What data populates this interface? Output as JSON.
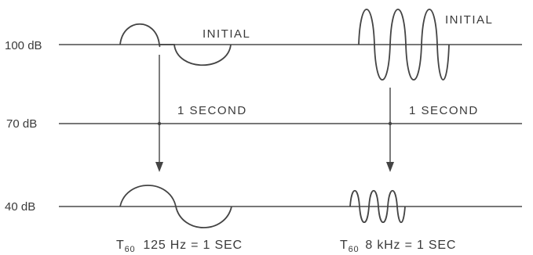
{
  "levels": [
    {
      "label": "100 dB"
    },
    {
      "label": "70 dB"
    },
    {
      "label": "40 dB"
    }
  ],
  "left_panel": {
    "initial_label": "INITIAL",
    "time_label": "1 SECOND",
    "caption_main": "T",
    "caption_sub": "60",
    "caption_rest": "125 Hz = 1 SEC"
  },
  "right_panel": {
    "initial_label": "INITIAL",
    "time_label": "1 SECOND",
    "caption_main": "T",
    "caption_sub": "60",
    "caption_rest": "8 kHz = 1 SEC"
  }
}
